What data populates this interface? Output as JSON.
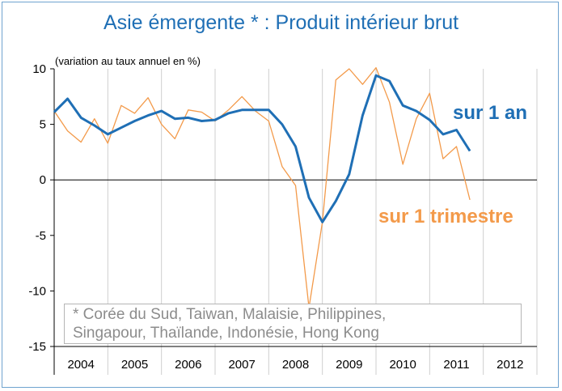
{
  "chart_data": {
    "type": "line",
    "title": "Asie émergente * : Produit intérieur brut",
    "unit_label": "(variation au taux annuel en %)",
    "ylim": [
      -15,
      10
    ],
    "yticks": [
      -15,
      -10,
      -5,
      0,
      5,
      10
    ],
    "xlim": [
      2004,
      2013
    ],
    "year_labels": [
      "2004",
      "2005",
      "2006",
      "2007",
      "2008",
      "2009",
      "2010",
      "2011",
      "2012"
    ],
    "grid": "vertical year lines",
    "series": [
      {
        "name": "sur 1 an",
        "color": "#1f6fb5",
        "x": [
          2004.0,
          2004.25,
          2004.5,
          2004.75,
          2005.0,
          2005.25,
          2005.5,
          2005.75,
          2006.0,
          2006.25,
          2006.5,
          2006.75,
          2007.0,
          2007.25,
          2007.5,
          2007.75,
          2008.0,
          2008.25,
          2008.5,
          2008.75,
          2009.0,
          2009.25,
          2009.5,
          2009.75,
          2010.0,
          2010.25,
          2010.5,
          2010.75,
          2011.0,
          2011.25,
          2011.5,
          2011.75
        ],
        "y": [
          6.1,
          7.3,
          5.6,
          4.9,
          4.1,
          4.7,
          5.3,
          5.8,
          6.2,
          5.5,
          5.6,
          5.3,
          5.4,
          6.0,
          6.3,
          6.3,
          6.3,
          5.0,
          3.0,
          -1.6,
          -3.8,
          -1.9,
          0.5,
          5.8,
          9.4,
          8.9,
          6.7,
          6.2,
          5.4,
          4.1,
          4.5,
          2.6
        ]
      },
      {
        "name": "sur 1 trimestre",
        "color": "#f39a4a",
        "x": [
          2004.0,
          2004.25,
          2004.5,
          2004.75,
          2005.0,
          2005.25,
          2005.5,
          2005.75,
          2006.0,
          2006.25,
          2006.5,
          2006.75,
          2007.0,
          2007.25,
          2007.5,
          2007.75,
          2008.0,
          2008.25,
          2008.5,
          2008.75,
          2009.0,
          2009.25,
          2009.5,
          2009.75,
          2010.0,
          2010.25,
          2010.5,
          2010.75,
          2011.0,
          2011.25,
          2011.5,
          2011.75
        ],
        "y": [
          6.2,
          4.4,
          3.4,
          5.5,
          3.3,
          6.7,
          6.0,
          7.4,
          5.0,
          3.7,
          6.3,
          6.1,
          5.3,
          6.3,
          7.5,
          6.2,
          5.3,
          1.2,
          -0.5,
          -11.5,
          -3.8,
          9.0,
          10.0,
          8.6,
          10.1,
          7.0,
          1.4,
          5.5,
          7.8,
          1.9,
          3.0,
          -1.8
        ]
      }
    ],
    "footnote_line1": "* Corée du Sud, Taiwan, Malaisie, Philippines,",
    "footnote_line2": "Singapour, Thaïlande, Indonésie, Hong Kong"
  }
}
